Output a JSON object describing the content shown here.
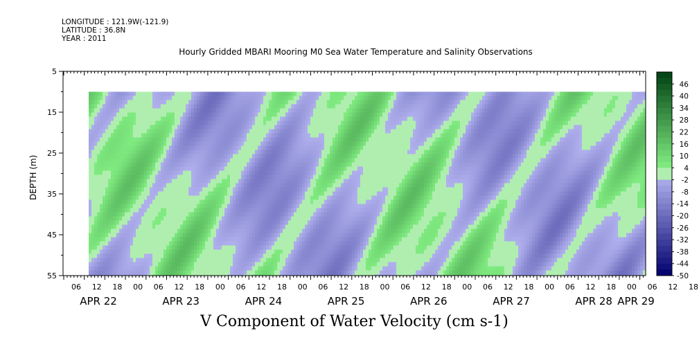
{
  "header": {
    "longitude": "LONGITUDE : 121.9W(-121.9)",
    "latitude": "LATITUDE : 36.8N",
    "year": "YEAR : 2011"
  },
  "chart_data": {
    "type": "heatmap",
    "title": "Hourly Gridded MBARI Mooring M0 Sea Water Temperature and Salinity Observations",
    "xlabel": "V Component of Water Velocity (cm s-1)",
    "ylabel": "DEPTH (m)",
    "ylim": [
      5,
      55
    ],
    "y_reversed": true,
    "y_ticks": [
      5,
      15,
      25,
      35,
      45,
      55
    ],
    "data_depth_range": [
      10,
      55
    ],
    "x_hour_ticks": [
      "06",
      "12",
      "18",
      "00",
      "06",
      "12",
      "18",
      "00",
      "06",
      "12",
      "18",
      "00",
      "06",
      "12",
      "18",
      "00",
      "06",
      "12",
      "18",
      "00",
      "06",
      "12",
      "18",
      "00",
      "06",
      "12",
      "18",
      "00",
      "06",
      "12",
      "18",
      "00"
    ],
    "x_day_labels": [
      "APR 22",
      "APR 23",
      "APR 24",
      "APR 25",
      "APR 26",
      "APR 27",
      "APR 28",
      "APR 29"
    ],
    "colorbar": {
      "ticks": [
        46,
        40,
        34,
        28,
        22,
        16,
        10,
        4,
        -2,
        -8,
        -14,
        -20,
        -26,
        -32,
        -38,
        -44,
        -50
      ],
      "range": [
        -50,
        52
      ],
      "step": 3
    },
    "grid": false
  }
}
